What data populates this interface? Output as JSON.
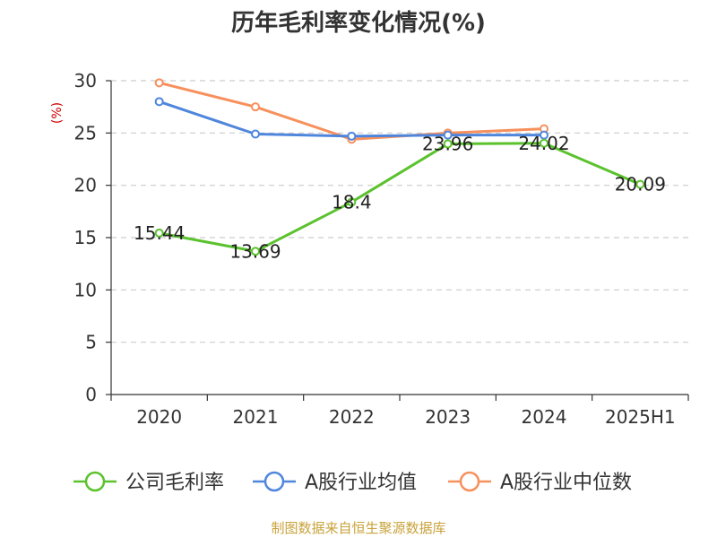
{
  "chart_data": {
    "type": "line",
    "title": "历年毛利率变化情况(%)",
    "ylabel": "(%)",
    "categories": [
      "2020",
      "2021",
      "2022",
      "2023",
      "2024",
      "2025H1"
    ],
    "ylim": [
      0,
      30
    ],
    "yticks": [
      0,
      5,
      10,
      15,
      20,
      25,
      30
    ],
    "grid": true,
    "legend_position": "bottom",
    "series": [
      {
        "name": "公司毛利率",
        "color": "#5bc22e",
        "values": [
          15.44,
          13.69,
          18.4,
          23.96,
          24.02,
          20.09
        ],
        "labels": [
          "15.44",
          "13.69",
          "18.4",
          "23.96",
          "24.02",
          "20.09"
        ]
      },
      {
        "name": "A股行业均值",
        "color": "#4f86dc",
        "values": [
          28.0,
          24.9,
          24.7,
          24.8,
          24.8,
          null
        ]
      },
      {
        "name": "A股行业中位数",
        "color": "#f7905c",
        "values": [
          29.8,
          27.5,
          24.4,
          25.0,
          25.4,
          null
        ]
      }
    ]
  },
  "source": "制图数据来自恒生聚源数据库",
  "colors": {
    "unit": "#cc0000",
    "source": "#c8a23a",
    "grid": "#cccccc",
    "axis": "#333333"
  }
}
